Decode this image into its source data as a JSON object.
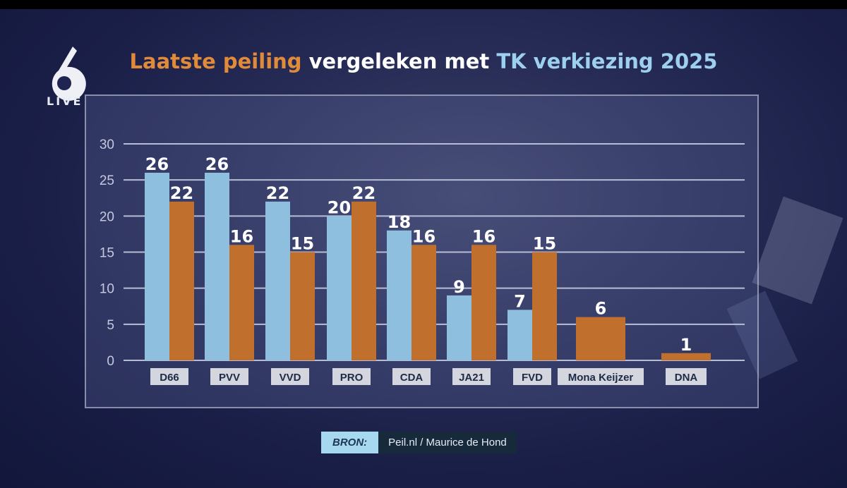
{
  "logo": {
    "number": "6",
    "sub": "LIVE"
  },
  "title": {
    "part1": "Laatste peiling",
    "part2": " vergeleken met ",
    "part3": "TK verkiezing 2025"
  },
  "colors": {
    "peiling": "#e08a3a",
    "tk2025": "#9dd0ee",
    "bar_blue": "#8fbfdf",
    "bar_orange": "#c0702c",
    "grid": "#b8bdd6",
    "label_bg": "#d3d6df",
    "label_text": "#1f2a44"
  },
  "chart_data": {
    "type": "bar",
    "title": "Laatste peiling vergeleken met TK verkiezing 2025",
    "categories": [
      "D66",
      "PVV",
      "VVD",
      "PRO",
      "CDA",
      "JA21",
      "FVD",
      "Mona Keijzer",
      "DNA"
    ],
    "series": [
      {
        "name": "TK verkiezing 2025",
        "color": "#8fbfdf",
        "values": [
          26,
          26,
          22,
          20,
          18,
          9,
          7,
          null,
          null
        ]
      },
      {
        "name": "Laatste peiling",
        "color": "#c0702c",
        "values": [
          22,
          16,
          15,
          22,
          16,
          16,
          15,
          6,
          1
        ]
      }
    ],
    "yticks": [
      0,
      5,
      10,
      15,
      20,
      25,
      30
    ],
    "ylim": [
      0,
      30
    ],
    "grid": true,
    "xlabel": "",
    "ylabel": ""
  },
  "source": {
    "label": "BRON:",
    "value": "Peil.nl / Maurice de Hond"
  }
}
